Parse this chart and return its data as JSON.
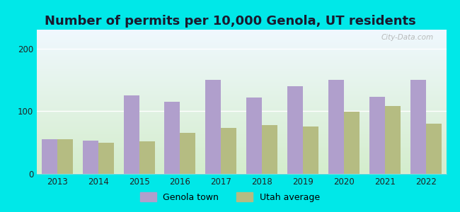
{
  "title": "Number of permits per 10,000 Genola, UT residents",
  "years": [
    2013,
    2014,
    2015,
    2016,
    2017,
    2018,
    2019,
    2020,
    2021,
    2022
  ],
  "genola": [
    55,
    53,
    125,
    115,
    150,
    122,
    140,
    150,
    123,
    150
  ],
  "utah": [
    55,
    50,
    52,
    65,
    73,
    78,
    76,
    99,
    108,
    80
  ],
  "genola_color": "#b09fcc",
  "utah_color": "#b5bc82",
  "bg_top": "#f0f8ff",
  "bg_bottom": "#d4edcc",
  "outer_bg": "#00e8e8",
  "ylim": [
    0,
    230
  ],
  "yticks": [
    0,
    100,
    200
  ],
  "bar_width": 0.38,
  "legend_labels": [
    "Genola town",
    "Utah average"
  ],
  "watermark": "City-Data.com",
  "title_color": "#1a1a2e",
  "title_fontsize": 13
}
